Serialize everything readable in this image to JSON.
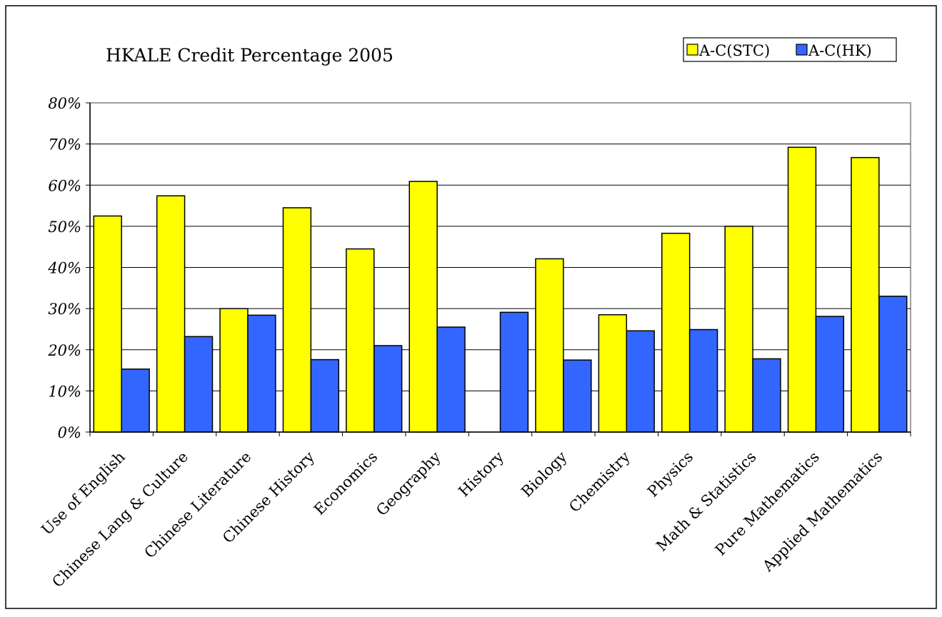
{
  "chart_data": {
    "type": "bar",
    "title": "HKALE Credit Percentage 2005",
    "xlabel": "",
    "ylabel": "",
    "ylim": [
      0,
      80
    ],
    "y_tick_step": 10,
    "y_tick_suffix": "%",
    "grid": true,
    "legend_position": "top-right",
    "categories": [
      "Use of English",
      "Chinese Lang & Culture",
      "Chinese Literature",
      "Chinese History",
      "Economics",
      "Geography",
      "History",
      "Biology",
      "Chemistry",
      "Physics",
      "Math & Statistics",
      "Pure Mathematics",
      "Applied Mathematics"
    ],
    "series": [
      {
        "name": "A-C(STC)",
        "color": "#ffff00",
        "values": [
          52.5,
          57.4,
          30.0,
          54.5,
          44.5,
          60.9,
          0,
          42.1,
          28.5,
          48.3,
          50.0,
          69.2,
          66.7
        ]
      },
      {
        "name": "A-C(HK)",
        "color": "#3366ff",
        "values": [
          15.3,
          23.2,
          28.4,
          17.6,
          21.0,
          25.5,
          29.1,
          17.5,
          24.6,
          24.9,
          17.8,
          28.1,
          33.0
        ]
      }
    ]
  }
}
